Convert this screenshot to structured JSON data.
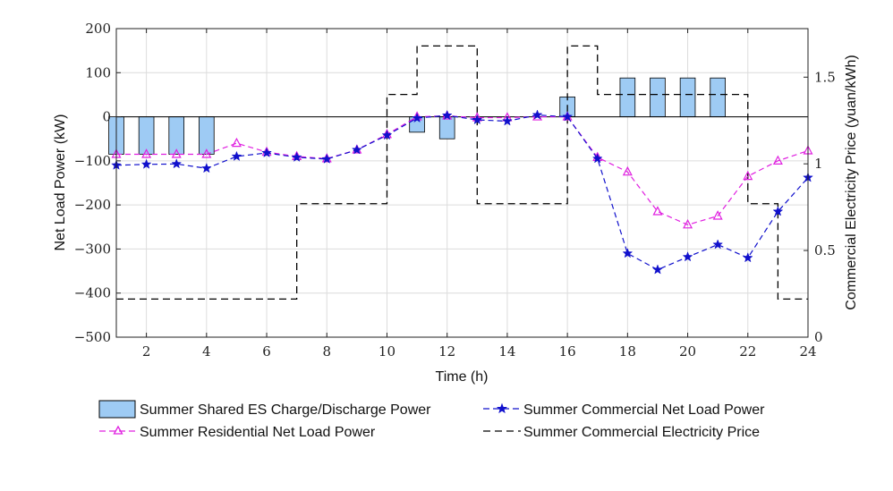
{
  "chart_data": {
    "type": "bar+line",
    "x_label": "Time (h)",
    "y_left_label": "Net Load Power (kW)",
    "y_right_label": "Commercial Electricity Price (yuan/kWh)",
    "x_range": [
      1,
      24
    ],
    "y_left_range": [
      -500,
      200
    ],
    "y_right_range": [
      0,
      1.78
    ],
    "x_ticks": [
      2,
      4,
      6,
      8,
      10,
      12,
      14,
      16,
      18,
      20,
      22,
      24
    ],
    "y_left_ticks": [
      -500,
      -400,
      -300,
      -200,
      -100,
      0,
      100,
      200
    ],
    "y_right_ticks": [
      0,
      0.5,
      1,
      1.5
    ],
    "x_tick_labels": [
      "2",
      "4",
      "6",
      "8",
      "10",
      "12",
      "14",
      "16",
      "18",
      "20",
      "22",
      "24"
    ],
    "y_left_tick_labels": [
      "−500",
      "−400",
      "−300",
      "−200",
      "−100",
      "0",
      "100",
      "200"
    ],
    "y_right_tick_labels": [
      "0",
      "0.5",
      "1",
      "1.5"
    ],
    "grid": true,
    "colors": {
      "bar_fill": "#9ecbf4",
      "bar_edge": "#000000",
      "commercial": "#1010cc",
      "residential": "#e020e0",
      "price": "#000000"
    },
    "series": [
      {
        "name": "Summer Shared ES Charge/Discharge Power",
        "type": "bar",
        "axis": "left",
        "x": [
          1,
          2,
          3,
          4,
          11,
          12,
          16,
          18,
          19,
          20,
          21
        ],
        "values": [
          -85,
          -85,
          -85,
          -85,
          -35,
          -50,
          45,
          88,
          88,
          88,
          88
        ]
      },
      {
        "name": "Summer Commercial Net Load Power",
        "type": "line",
        "axis": "left",
        "marker": "star",
        "x": [
          1,
          2,
          3,
          4,
          5,
          6,
          7,
          8,
          9,
          10,
          11,
          12,
          13,
          14,
          15,
          16,
          17,
          18,
          19,
          20,
          21,
          22,
          23,
          24
        ],
        "values": [
          -110,
          -108,
          -107,
          -117,
          -90,
          -82,
          -92,
          -96,
          -75,
          -42,
          -3,
          3,
          -7,
          -10,
          4,
          0,
          -95,
          -310,
          -347,
          -318,
          -290,
          -320,
          -215,
          -138
        ]
      },
      {
        "name": "Summer Residential Net Load Power",
        "type": "line",
        "axis": "left",
        "marker": "triangle",
        "x": [
          1,
          2,
          3,
          4,
          5,
          6,
          7,
          8,
          9,
          10,
          11,
          12,
          13,
          14,
          15,
          16,
          17,
          18,
          19,
          20,
          21,
          22,
          23,
          24
        ],
        "values": [
          -85,
          -85,
          -85,
          -85,
          -60,
          -80,
          -90,
          -95,
          -75,
          -40,
          0,
          2,
          -2,
          -2,
          0,
          0,
          -92,
          -125,
          -215,
          -245,
          -225,
          -135,
          -100,
          -77
        ]
      },
      {
        "name": "Summer Commercial Electricity Price",
        "type": "step",
        "axis": "right",
        "x_edges": [
          1,
          7,
          10,
          11,
          13,
          16,
          17,
          22,
          23,
          24
        ],
        "values": [
          0.22,
          0.77,
          1.4,
          1.68,
          0.77,
          1.68,
          1.4,
          0.77,
          0.22
        ]
      }
    ],
    "legend": {
      "position": "bottom",
      "entries": [
        "Summer Shared ES Charge/Discharge Power",
        "Summer Commercial Net Load Power",
        "Summer Residential Net Load Power",
        "Summer Commercial Electricity Price"
      ]
    }
  }
}
